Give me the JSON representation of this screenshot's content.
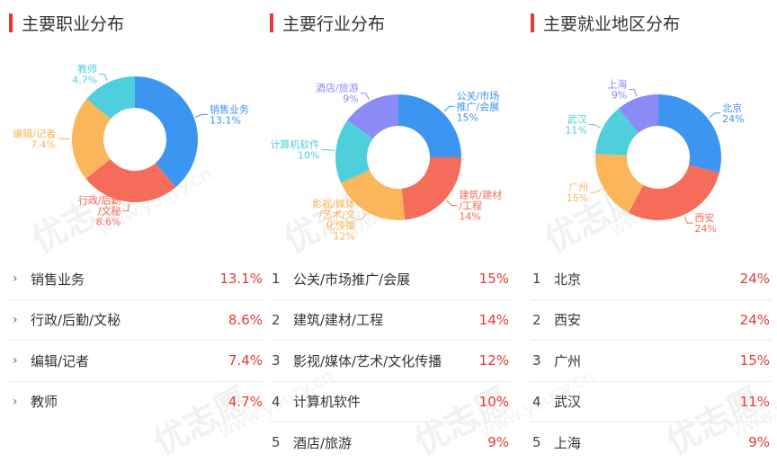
{
  "sections": [
    {
      "title": "主要职业分布",
      "numbered": false,
      "items": [
        {
          "name": "销售业务",
          "value": "13.1%"
        },
        {
          "name": "行政/后勤/文秘",
          "value": "8.6%"
        },
        {
          "name": "编辑/记者",
          "value": "7.4%"
        },
        {
          "name": "教师",
          "value": "4.7%"
        }
      ],
      "chart": {
        "slices": [
          {
            "value": 13.1,
            "color": "#3d95f2",
            "label_lines": [
              "销售业务",
              "13.1%"
            ]
          },
          {
            "value": 8.6,
            "color": "#f56c5a",
            "label_lines": [
              "行政/后勤",
              "/文秘",
              "8.6%"
            ]
          },
          {
            "value": 7.4,
            "color": "#fbb55a",
            "label_lines": [
              "编辑/记者",
              "7.4%"
            ]
          },
          {
            "value": 4.7,
            "color": "#4fcfdc",
            "label_lines": [
              "教师",
              "4.7%"
            ]
          }
        ]
      }
    },
    {
      "title": "主要行业分布",
      "numbered": true,
      "items": [
        {
          "rank": "1",
          "name": "公关/市场推广/会展",
          "value": "15%"
        },
        {
          "rank": "2",
          "name": "建筑/建材/工程",
          "value": "14%"
        },
        {
          "rank": "3",
          "name": "影视/媒体/艺术/文化传播",
          "value": "12%"
        },
        {
          "rank": "4",
          "name": "计算机软件",
          "value": "10%"
        },
        {
          "rank": "5",
          "name": "酒店/旅游",
          "value": "9%"
        }
      ],
      "chart": {
        "slices": [
          {
            "value": 15,
            "color": "#3d95f2",
            "label_lines": [
              "公关/市场",
              "推广/会展",
              "15%"
            ]
          },
          {
            "value": 14,
            "color": "#f56c5a",
            "label_lines": [
              "建筑/建材",
              "/工程",
              "14%"
            ]
          },
          {
            "value": 12,
            "color": "#fbb55a",
            "label_lines": [
              "影视/媒体",
              "/艺术/文",
              "化传播",
              "12%"
            ]
          },
          {
            "value": 10,
            "color": "#4fcfdc",
            "label_lines": [
              "计算机软件",
              "10%"
            ]
          },
          {
            "value": 9,
            "color": "#8a8bf5",
            "label_lines": [
              "酒店/旅游",
              "9%"
            ]
          }
        ]
      }
    },
    {
      "title": "主要就业地区分布",
      "numbered": true,
      "items": [
        {
          "rank": "1",
          "name": "北京",
          "value": "24%"
        },
        {
          "rank": "2",
          "name": "西安",
          "value": "24%"
        },
        {
          "rank": "3",
          "name": "广州",
          "value": "15%"
        },
        {
          "rank": "4",
          "name": "武汉",
          "value": "11%"
        },
        {
          "rank": "5",
          "name": "上海",
          "value": "9%"
        }
      ],
      "chart": {
        "slices": [
          {
            "value": 24,
            "color": "#3d95f2",
            "label_lines": [
              "北京",
              "24%"
            ]
          },
          {
            "value": 24,
            "color": "#f56c5a",
            "label_lines": [
              "西安",
              "24%"
            ]
          },
          {
            "value": 15,
            "color": "#fbb55a",
            "label_lines": [
              "广州",
              "15%"
            ]
          },
          {
            "value": 11,
            "color": "#4fcfdc",
            "label_lines": [
              "武汉",
              "11%"
            ]
          },
          {
            "value": 9,
            "color": "#8a8bf5",
            "label_lines": [
              "上海",
              "9%"
            ]
          }
        ]
      }
    }
  ],
  "icons": {
    "row_chevron": "chevron-right-icon"
  },
  "watermark": {
    "logo_text": "优志愿",
    "domain_text": "www.youzy.cn"
  }
}
